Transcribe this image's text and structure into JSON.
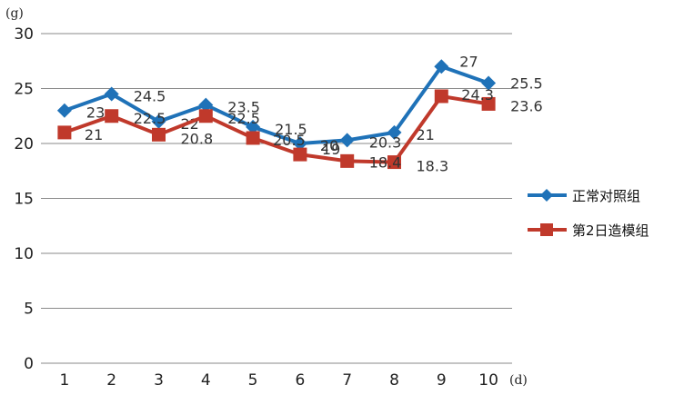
{
  "chart_data": {
    "type": "line",
    "x_unit": "(d)",
    "y_unit": "(g)",
    "categories": [
      "1",
      "2",
      "3",
      "4",
      "5",
      "6",
      "7",
      "8",
      "9",
      "10"
    ],
    "ylim": [
      0,
      30
    ],
    "y_ticks": [
      "0",
      "5",
      "10",
      "15",
      "20",
      "25",
      "30"
    ],
    "grid": true,
    "legend_position": "right",
    "series": [
      {
        "name": "正常对照组",
        "marker": "diamond",
        "color": "#1F72B8",
        "values": [
          23,
          24.5,
          22,
          23.5,
          21.5,
          20,
          20.3,
          21,
          27,
          25.5
        ],
        "labels": [
          "23",
          "24.5",
          "22",
          "23.5",
          "21.5",
          "20",
          "20.3",
          "21",
          "27",
          "25.5"
        ]
      },
      {
        "name": "第2日造模组",
        "marker": "square",
        "color": "#C0392B",
        "values": [
          21,
          22.5,
          20.8,
          22.5,
          20.5,
          19,
          18.4,
          18.3,
          24.3,
          23.6
        ],
        "labels": [
          "21",
          "22.5",
          "20.8",
          "22.5",
          "20.5",
          "19",
          "18.4",
          "18.3",
          "24.3",
          "23.6"
        ]
      }
    ]
  }
}
